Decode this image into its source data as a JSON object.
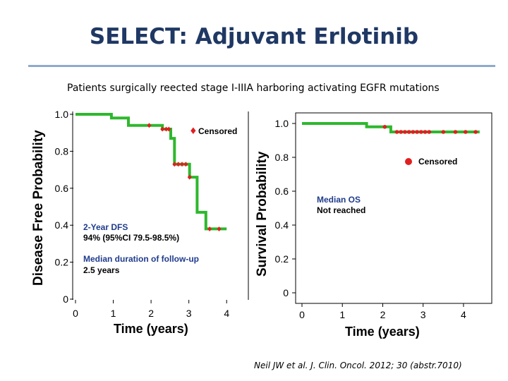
{
  "slide": {
    "title": "SELECT: Adjuvant Erlotinib",
    "subtitle": "Patients surgically reected stage I-IIIA harboring activating EGFR mutations",
    "citation": "Neil JW et al. J. Clin. Oncol. 2012; 30 (abstr.7010)",
    "accent_color": "#1f3864",
    "rule_color": "#8eaacc"
  },
  "chart_data": [
    {
      "type": "line",
      "step": true,
      "xlabel": "Time (years)",
      "ylabel": "Disease Free Probability",
      "xlim": [
        0,
        4.5
      ],
      "ylim": [
        0,
        1.0
      ],
      "xticks": [
        "0",
        "1",
        "2",
        "3",
        "4"
      ],
      "yticks": [
        "0",
        "0.2",
        "0.4",
        "0.6",
        "0.8",
        "1.0"
      ],
      "series": [
        {
          "color": "#2db82d",
          "x": [
            0,
            0.95,
            0.95,
            1.4,
            1.4,
            2.3,
            2.3,
            2.52,
            2.52,
            2.62,
            2.62,
            3.02,
            3.02,
            3.22,
            3.22,
            3.45,
            3.45,
            4.0
          ],
          "y": [
            1.0,
            1.0,
            0.98,
            0.98,
            0.94,
            0.94,
            0.92,
            0.92,
            0.87,
            0.87,
            0.73,
            0.73,
            0.66,
            0.66,
            0.47,
            0.47,
            0.38,
            0.38
          ]
        }
      ],
      "censored": {
        "color": "#e02020",
        "x": [
          1.95,
          2.3,
          2.4,
          2.47,
          2.62,
          2.72,
          2.82,
          2.92,
          3.02,
          3.55,
          3.8
        ],
        "y": [
          0.94,
          0.92,
          0.92,
          0.92,
          0.73,
          0.73,
          0.73,
          0.73,
          0.66,
          0.38,
          0.38
        ]
      },
      "legend": {
        "label": "Censored",
        "position": "top-right"
      },
      "annotations": {
        "dfs_title": "2-Year DFS",
        "dfs_value": "94% (95%CI 79.5-98.5%)",
        "followup_title": "Median duration of follow-up",
        "followup_value": "2.5 years"
      }
    },
    {
      "type": "line",
      "step": true,
      "xlabel": "Time (years)",
      "ylabel": "Survival Probability",
      "xlim": [
        0,
        4.7
      ],
      "ylim": [
        0,
        1.1
      ],
      "xticks": [
        "0",
        "1",
        "2",
        "3",
        "4"
      ],
      "yticks": [
        "0",
        "0.2",
        "0.4",
        "0.6",
        "0.8",
        "1.0"
      ],
      "series": [
        {
          "color": "#2db82d",
          "x": [
            0,
            1.6,
            1.6,
            2.2,
            2.2,
            4.4
          ],
          "y": [
            1.0,
            1.0,
            0.98,
            0.98,
            0.95,
            0.95
          ]
        }
      ],
      "censored": {
        "color": "#e02020",
        "x": [
          2.05,
          2.35,
          2.45,
          2.55,
          2.65,
          2.75,
          2.85,
          2.95,
          3.05,
          3.15,
          3.5,
          3.8,
          4.05,
          4.3
        ],
        "y": [
          0.98,
          0.95,
          0.95,
          0.95,
          0.95,
          0.95,
          0.95,
          0.95,
          0.95,
          0.95,
          0.95,
          0.95,
          0.95,
          0.95
        ]
      },
      "legend": {
        "label": "Censored",
        "position": "center-right"
      },
      "annotations": {
        "median_title": "Median OS",
        "median_value": "Not reached"
      }
    }
  ]
}
